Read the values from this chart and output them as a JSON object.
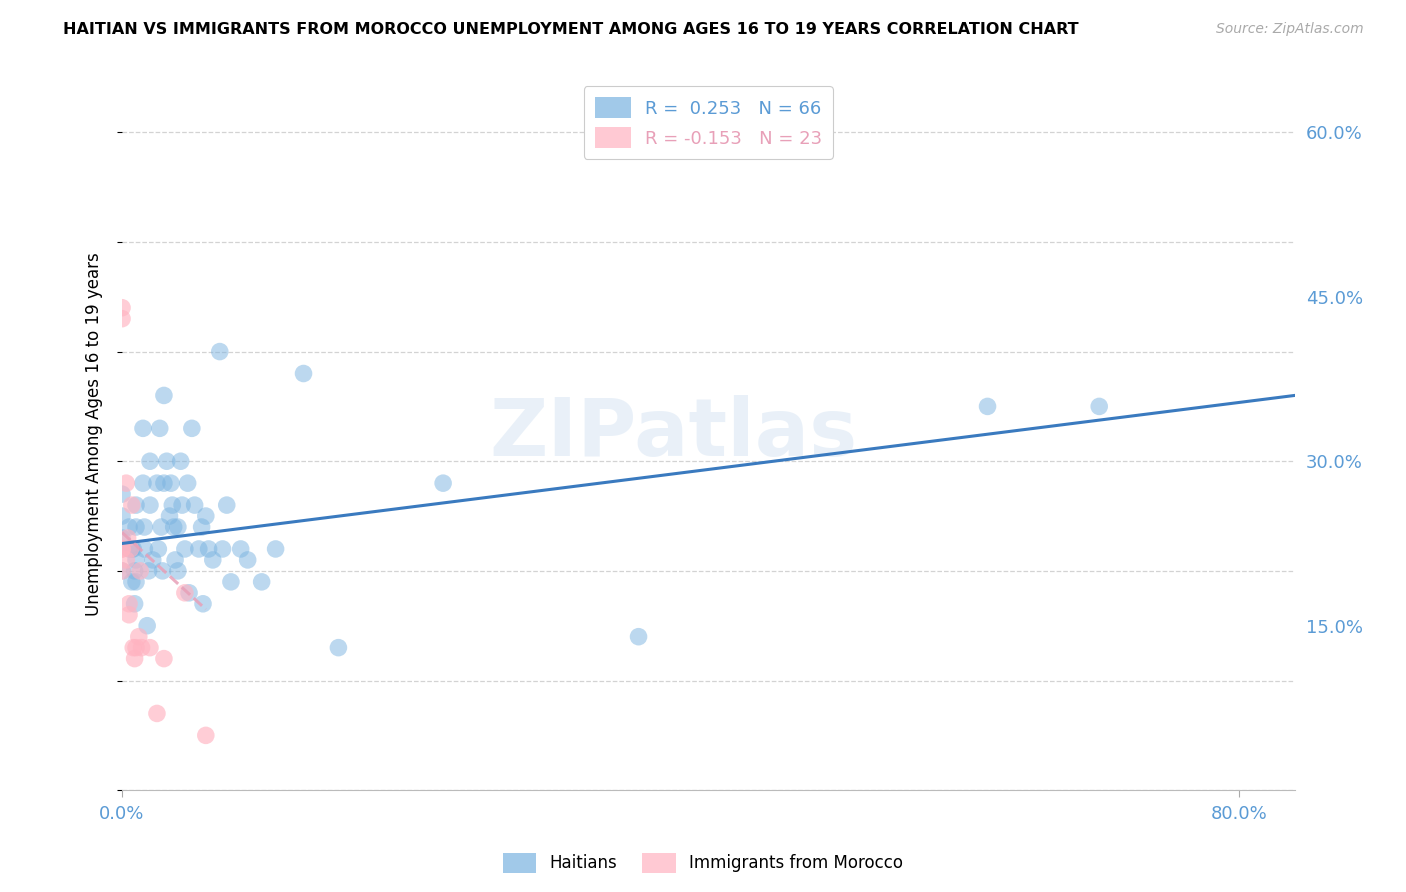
{
  "title": "HAITIAN VS IMMIGRANTS FROM MOROCCO UNEMPLOYMENT AMONG AGES 16 TO 19 YEARS CORRELATION CHART",
  "source": "Source: ZipAtlas.com",
  "ylabel": "Unemployment Among Ages 16 to 19 years",
  "xlim": [
    0.0,
    0.84
  ],
  "ylim": [
    0.0,
    0.65
  ],
  "x_ticks": [
    0.0,
    0.8
  ],
  "x_tick_labels": [
    "0.0%",
    "80.0%"
  ],
  "y_ticks": [
    0.15,
    0.3,
    0.45,
    0.6
  ],
  "y_tick_labels": [
    "15.0%",
    "30.0%",
    "45.0%",
    "60.0%"
  ],
  "legend1_label": "R =  0.253   N = 66",
  "legend2_label": "R = -0.153   N = 23",
  "tick_color": "#5b9bd5",
  "background_color": "#ffffff",
  "grid_color": "#c8c8c8",
  "blue_color": "#7ab3e0",
  "pink_color": "#ffb3c1",
  "blue_line_color": "#3a7abf",
  "pink_line_color": "#e8a0b8",
  "watermark": "ZIPatlas",
  "haitians_x": [
    0.0,
    0.0,
    0.0,
    0.0,
    0.005,
    0.005,
    0.007,
    0.007,
    0.008,
    0.009,
    0.009,
    0.01,
    0.01,
    0.01,
    0.01,
    0.015,
    0.015,
    0.016,
    0.016,
    0.018,
    0.019,
    0.02,
    0.02,
    0.022,
    0.025,
    0.026,
    0.027,
    0.028,
    0.029,
    0.03,
    0.03,
    0.032,
    0.034,
    0.035,
    0.036,
    0.037,
    0.038,
    0.04,
    0.04,
    0.042,
    0.043,
    0.045,
    0.047,
    0.048,
    0.05,
    0.052,
    0.055,
    0.057,
    0.058,
    0.06,
    0.062,
    0.065,
    0.07,
    0.072,
    0.075,
    0.078,
    0.085,
    0.09,
    0.1,
    0.11,
    0.13,
    0.155,
    0.23,
    0.37,
    0.62,
    0.7
  ],
  "haitians_y": [
    0.23,
    0.25,
    0.2,
    0.27,
    0.24,
    0.22,
    0.22,
    0.19,
    0.22,
    0.2,
    0.17,
    0.24,
    0.26,
    0.21,
    0.19,
    0.33,
    0.28,
    0.22,
    0.24,
    0.15,
    0.2,
    0.3,
    0.26,
    0.21,
    0.28,
    0.22,
    0.33,
    0.24,
    0.2,
    0.36,
    0.28,
    0.3,
    0.25,
    0.28,
    0.26,
    0.24,
    0.21,
    0.24,
    0.2,
    0.3,
    0.26,
    0.22,
    0.28,
    0.18,
    0.33,
    0.26,
    0.22,
    0.24,
    0.17,
    0.25,
    0.22,
    0.21,
    0.4,
    0.22,
    0.26,
    0.19,
    0.22,
    0.21,
    0.19,
    0.22,
    0.38,
    0.13,
    0.28,
    0.14,
    0.35,
    0.35
  ],
  "morocco_x": [
    0.0,
    0.0,
    0.0,
    0.0,
    0.0,
    0.003,
    0.003,
    0.004,
    0.005,
    0.005,
    0.006,
    0.007,
    0.008,
    0.009,
    0.01,
    0.012,
    0.013,
    0.014,
    0.02,
    0.025,
    0.03,
    0.045,
    0.06
  ],
  "morocco_y": [
    0.44,
    0.43,
    0.22,
    0.22,
    0.2,
    0.28,
    0.21,
    0.23,
    0.17,
    0.16,
    0.22,
    0.26,
    0.13,
    0.12,
    0.13,
    0.14,
    0.2,
    0.13,
    0.13,
    0.07,
    0.12,
    0.18,
    0.05
  ],
  "blue_line_x": [
    0.0,
    0.84
  ],
  "blue_line_y": [
    0.225,
    0.36
  ],
  "pink_line_x": [
    0.0,
    0.06
  ],
  "pink_line_y": [
    0.235,
    0.165
  ]
}
